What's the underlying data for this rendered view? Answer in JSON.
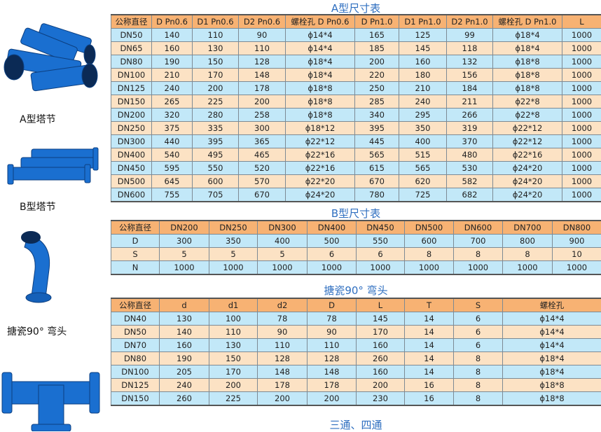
{
  "left_panel": {
    "labels": [
      "A型塔节",
      "B型塔节",
      "搪瓷90° 弯头"
    ],
    "product_color": "#1a6fd0"
  },
  "colors": {
    "header": "#f7b273",
    "row_blue": "#c2e8f8",
    "row_peach": "#fce2c4",
    "title": "#2f6fc0"
  },
  "table_a": {
    "title": "A型尺寸表",
    "headers": [
      "公称直径",
      "D Pn0.6",
      "D1 Pn0.6",
      "D2 Pn0.6",
      "螺栓孔 D Pn0.6",
      "D Pn1.0",
      "D1 Pn1.0",
      "D2 Pn1.0",
      "螺栓孔 D Pn1.0",
      "L"
    ],
    "rows": [
      [
        "DN50",
        "140",
        "110",
        "90",
        "ϕ14*4",
        "165",
        "125",
        "99",
        "ϕ18*4",
        "1000"
      ],
      [
        "DN65",
        "160",
        "130",
        "110",
        "ϕ14*4",
        "185",
        "145",
        "118",
        "ϕ18*4",
        "1000"
      ],
      [
        "DN80",
        "190",
        "150",
        "128",
        "ϕ18*4",
        "200",
        "160",
        "132",
        "ϕ18*8",
        "1000"
      ],
      [
        "DN100",
        "210",
        "170",
        "148",
        "ϕ18*4",
        "220",
        "180",
        "156",
        "ϕ18*8",
        "1000"
      ],
      [
        "DN125",
        "240",
        "200",
        "178",
        "ϕ18*8",
        "250",
        "210",
        "184",
        "ϕ18*8",
        "1000"
      ],
      [
        "DN150",
        "265",
        "225",
        "200",
        "ϕ18*8",
        "285",
        "240",
        "211",
        "ϕ22*8",
        "1000"
      ],
      [
        "DN200",
        "320",
        "280",
        "258",
        "ϕ18*8",
        "340",
        "295",
        "266",
        "ϕ22*8",
        "1000"
      ],
      [
        "DN250",
        "375",
        "335",
        "300",
        "ϕ18*12",
        "395",
        "350",
        "319",
        "ϕ22*12",
        "1000"
      ],
      [
        "DN300",
        "440",
        "395",
        "365",
        "ϕ22*12",
        "445",
        "400",
        "370",
        "ϕ22*12",
        "1000"
      ],
      [
        "DN400",
        "540",
        "495",
        "465",
        "ϕ22*16",
        "565",
        "515",
        "480",
        "ϕ22*16",
        "1000"
      ],
      [
        "DN450",
        "595",
        "550",
        "520",
        "ϕ22*16",
        "615",
        "565",
        "530",
        "ϕ24*20",
        "1000"
      ],
      [
        "DN500",
        "645",
        "600",
        "570",
        "ϕ22*20",
        "670",
        "620",
        "582",
        "ϕ24*20",
        "1000"
      ],
      [
        "DN600",
        "755",
        "705",
        "670",
        "ϕ24*20",
        "780",
        "725",
        "682",
        "ϕ24*20",
        "1000"
      ]
    ]
  },
  "table_b": {
    "title": "B型尺寸表",
    "headers": [
      "公称直径",
      "DN200",
      "DN250",
      "DN300",
      "DN400",
      "DN450",
      "DN500",
      "DN600",
      "DN700",
      "DN800"
    ],
    "rows": [
      [
        "D",
        "300",
        "350",
        "400",
        "500",
        "550",
        "600",
        "700",
        "800",
        "900"
      ],
      [
        "S",
        "5",
        "5",
        "5",
        "6",
        "6",
        "8",
        "8",
        "8",
        "10"
      ],
      [
        "N",
        "1000",
        "1000",
        "1000",
        "1000",
        "1000",
        "1000",
        "1000",
        "1000",
        "1000"
      ]
    ]
  },
  "table_elbow": {
    "title": "搪瓷90° 弯头",
    "headers": [
      "公称直径",
      "d",
      "d1",
      "d2",
      "D",
      "L",
      "T",
      "S",
      "螺栓孔"
    ],
    "rows": [
      [
        "DN40",
        "130",
        "100",
        "78",
        "78",
        "145",
        "14",
        "6",
        "ϕ14*4"
      ],
      [
        "DN50",
        "140",
        "110",
        "90",
        "90",
        "170",
        "14",
        "6",
        "ϕ14*4"
      ],
      [
        "DN70",
        "160",
        "130",
        "110",
        "110",
        "160",
        "14",
        "6",
        "ϕ14*4"
      ],
      [
        "DN80",
        "190",
        "150",
        "128",
        "128",
        "260",
        "14",
        "8",
        "ϕ18*4"
      ],
      [
        "DN100",
        "205",
        "170",
        "148",
        "148",
        "160",
        "14",
        "8",
        "ϕ18*4"
      ],
      [
        "DN125",
        "240",
        "200",
        "178",
        "178",
        "200",
        "16",
        "8",
        "ϕ18*8"
      ],
      [
        "DN150",
        "260",
        "225",
        "200",
        "200",
        "230",
        "16",
        "8",
        "ϕ18*8"
      ]
    ]
  },
  "bottom_title": "三通、四通"
}
